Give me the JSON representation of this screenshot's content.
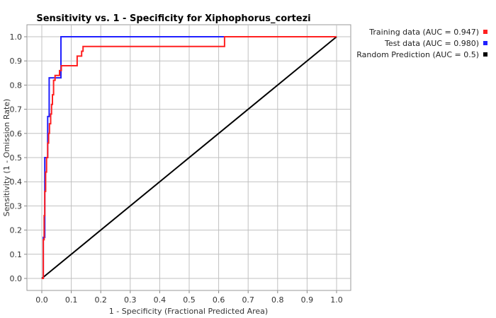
{
  "chart_data": {
    "type": "line",
    "title": "Sensitivity vs. 1 - Specificity for Xiphophorus_cortezi",
    "xlabel": "1 - Specificity  (Fractional Predicted Area)",
    "ylabel": "Sensitivity  (1 - Omission Rate)",
    "xlim": [
      0,
      1
    ],
    "ylim": [
      0,
      1
    ],
    "xticks": [
      "0.0",
      "0.1",
      "0.2",
      "0.3",
      "0.4",
      "0.5",
      "0.6",
      "0.7",
      "0.8",
      "0.9",
      "1.0"
    ],
    "yticks": [
      "0.0",
      "0.1",
      "0.2",
      "0.3",
      "0.4",
      "0.5",
      "0.6",
      "0.7",
      "0.8",
      "0.9",
      "1.0"
    ],
    "grid": true,
    "legend_position": "right-top",
    "series": [
      {
        "name": "Training data (AUC = 0.947)",
        "color": "#ff2020",
        "x": [
          0,
          0.005,
          0.005,
          0.008,
          0.008,
          0.01,
          0.01,
          0.013,
          0.013,
          0.016,
          0.016,
          0.02,
          0.02,
          0.023,
          0.023,
          0.026,
          0.026,
          0.03,
          0.03,
          0.033,
          0.033,
          0.036,
          0.036,
          0.04,
          0.04,
          0.045,
          0.045,
          0.06,
          0.06,
          0.066,
          0.066,
          0.12,
          0.12,
          0.135,
          0.135,
          0.14,
          0.14,
          0.62,
          0.62,
          1.0
        ],
        "y": [
          0,
          0,
          0.16,
          0.16,
          0.26,
          0.26,
          0.36,
          0.36,
          0.44,
          0.44,
          0.5,
          0.5,
          0.56,
          0.56,
          0.6,
          0.6,
          0.64,
          0.64,
          0.68,
          0.68,
          0.72,
          0.72,
          0.76,
          0.76,
          0.82,
          0.82,
          0.84,
          0.84,
          0.86,
          0.86,
          0.88,
          0.88,
          0.92,
          0.92,
          0.94,
          0.94,
          0.96,
          0.96,
          1.0,
          1.0
        ]
      },
      {
        "name": "Test data (AUC = 0.980)",
        "color": "#2020ff",
        "x": [
          0,
          0.005,
          0.005,
          0.01,
          0.01,
          0.02,
          0.02,
          0.025,
          0.025,
          0.065,
          0.065,
          1.0
        ],
        "y": [
          0,
          0,
          0.17,
          0.17,
          0.5,
          0.5,
          0.67,
          0.67,
          0.83,
          0.83,
          1.0,
          1.0
        ]
      },
      {
        "name": "Random Prediction (AUC = 0.5)",
        "color": "#000000",
        "x": [
          0,
          1
        ],
        "y": [
          0,
          1
        ]
      }
    ]
  }
}
